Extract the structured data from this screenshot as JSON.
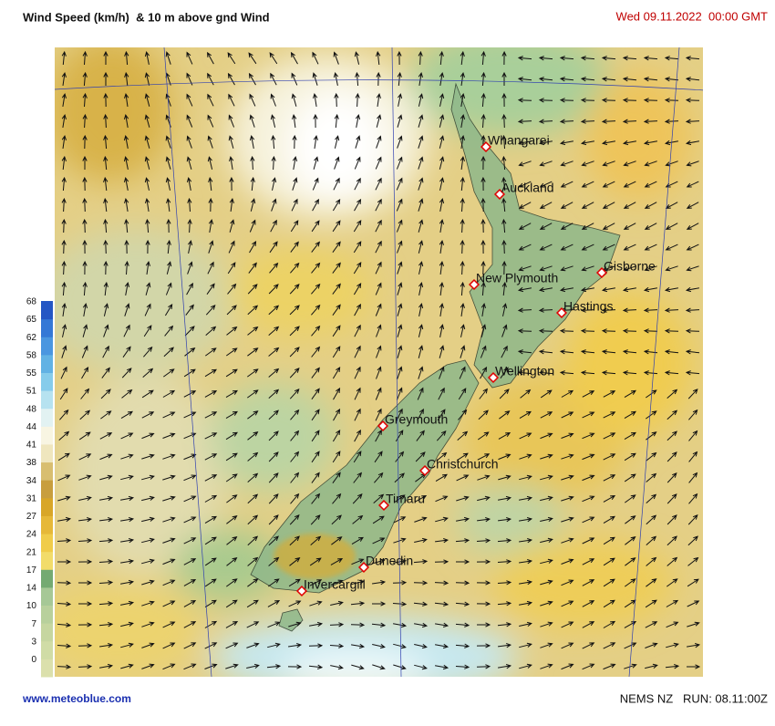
{
  "header": {
    "title": "Wind Speed (km/h)  & 10 m above gnd Wind",
    "date": "Wed 09.11.2022  00:00 GMT"
  },
  "legend": {
    "ticks": [
      0,
      3,
      7,
      10,
      14,
      17,
      21,
      24,
      27,
      31,
      34,
      38,
      41,
      44,
      48,
      51,
      55,
      58,
      62,
      65,
      68
    ],
    "colors": [
      "#dbe0ac",
      "#d0dca6",
      "#c6d6a0",
      "#b8d09c",
      "#a6c896",
      "#74aa72",
      "#f2dc6a",
      "#f0cc4a",
      "#e6b838",
      "#d8a628",
      "#c89e3e",
      "#d8be70",
      "#efe6be",
      "#f8f5e2",
      "#e2f2f2",
      "#b6e2f0",
      "#86cceb",
      "#62b2e4",
      "#4a96e0",
      "#3478d6",
      "#2456c4"
    ]
  },
  "cities": [
    "Whangarei",
    "Auckland",
    "Gisborne",
    "New Plymouth",
    "Hastings",
    "Wellington",
    "Greymouth",
    "Christchurch",
    "Timaru",
    "Dunedin",
    "Invercargill"
  ],
  "footer": {
    "source": "www.meteoblue.com",
    "run": "NEMS NZ   RUN: 08.11:00Z"
  }
}
